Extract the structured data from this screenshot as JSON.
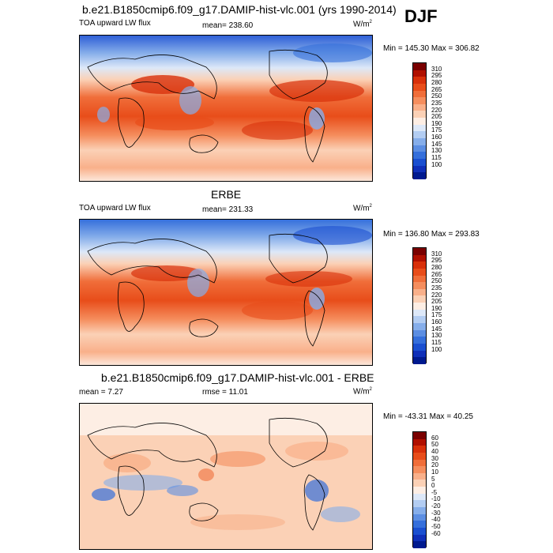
{
  "season": "DJF",
  "panels": [
    {
      "title": "b.e21.B1850cmip6.f09_g17.DAMIP-hist-vlc.001 (yrs 1990-2014)",
      "left_label": "TOA upward LW flux",
      "center_label": "mean= 238.60",
      "units": "W/m",
      "units_sup": "2",
      "minmax": "Min = 145.30 Max = 306.82",
      "colorbar_labels": [
        "310",
        "295",
        "280",
        "265",
        "250",
        "235",
        "220",
        "205",
        "190",
        "175",
        "160",
        "145",
        "130",
        "115",
        "100"
      ],
      "colorbar_colors": [
        "#7a0000",
        "#b01000",
        "#d8300a",
        "#e84d1a",
        "#f06e3a",
        "#f58e5e",
        "#f9b08a",
        "#fbd1b6",
        "#fdeee4",
        "#dde8f8",
        "#b3cdf2",
        "#86aeea",
        "#5c8ee2",
        "#356fdb",
        "#1a4fd0",
        "#0f2fb8",
        "#001a8f"
      ]
    },
    {
      "title": "ERBE",
      "left_label": "TOA upward LW flux",
      "center_label": "mean= 231.33",
      "units": "W/m",
      "units_sup": "2",
      "minmax": "Min = 136.80 Max = 293.83",
      "colorbar_labels": [
        "310",
        "295",
        "280",
        "265",
        "250",
        "235",
        "220",
        "205",
        "190",
        "175",
        "160",
        "145",
        "130",
        "115",
        "100"
      ],
      "colorbar_colors": [
        "#7a0000",
        "#b01000",
        "#d8300a",
        "#e84d1a",
        "#f06e3a",
        "#f58e5e",
        "#f9b08a",
        "#fbd1b6",
        "#fdeee4",
        "#dde8f8",
        "#b3cdf2",
        "#86aeea",
        "#5c8ee2",
        "#356fdb",
        "#1a4fd0",
        "#0f2fb8",
        "#001a8f"
      ]
    },
    {
      "title": "b.e21.B1850cmip6.f09_g17.DAMIP-hist-vlc.001 - ERBE",
      "left_label": "mean =  7.27",
      "center_label": "rmse =  11.01",
      "units": "W/m",
      "units_sup": "2",
      "minmax": "Min = -43.31 Max =  40.25",
      "colorbar_labels": [
        "60",
        "50",
        "40",
        "30",
        "20",
        "10",
        "5",
        "0",
        "-5",
        "-10",
        "-20",
        "-30",
        "-40",
        "-50",
        "-60"
      ],
      "colorbar_colors": [
        "#7a0000",
        "#b01000",
        "#d8300a",
        "#e84d1a",
        "#f06e3a",
        "#f58e5e",
        "#f9b08a",
        "#fbd1b6",
        "#fdeee4",
        "#dde8f8",
        "#b3cdf2",
        "#86aeea",
        "#5c8ee2",
        "#356fdb",
        "#1a4fd0",
        "#0f2fb8",
        "#001a8f"
      ]
    }
  ]
}
